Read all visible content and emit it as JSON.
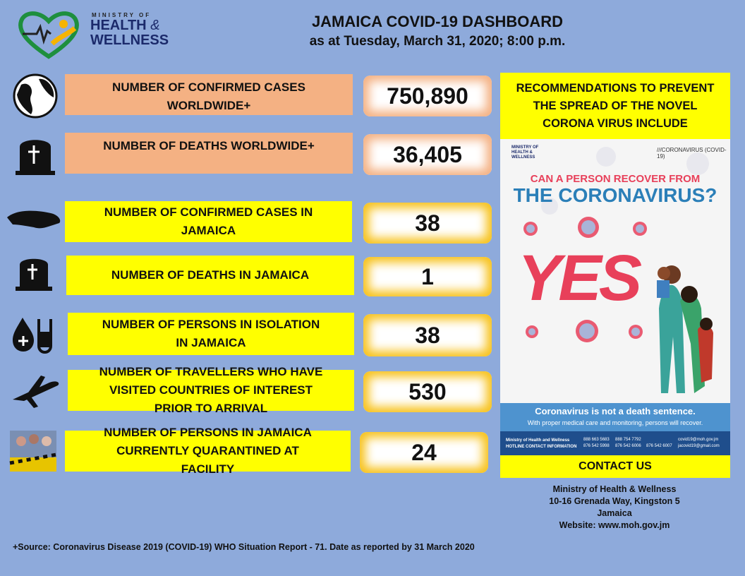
{
  "header": {
    "logo": [
      "MINISTRY OF",
      "HEALTH",
      "&",
      "WELLNESS"
    ],
    "title": "JAMAICA COVID-19 DASHBOARD",
    "subtitle": "as at Tuesday, March 31, 2020; 8:00 p.m."
  },
  "stats": [
    {
      "label": "NUMBER OF CONFIRMED CASES WORLDWIDE+",
      "value": "750,890"
    },
    {
      "label": "NUMBER OF DEATHS WORLDWIDE+",
      "value": "36,405"
    },
    {
      "label": "NUMBER OF CONFIRMED CASES IN JAMAICA",
      "value": "38"
    },
    {
      "label": "NUMBER OF DEATHS IN JAMAICA",
      "value": "1"
    },
    {
      "label": "NUMBER OF PERSONS IN ISOLATION IN JAMAICA",
      "value": "38"
    },
    {
      "label": "NUMBER OF TRAVELLERS WHO HAVE VISITED COUNTRIES OF INTEREST PRIOR TO ARRIVAL",
      "value": "530"
    },
    {
      "label": "NUMBER OF PERSONS IN JAMAICA CURRENTLY QUARANTINED AT FACILITY",
      "value": "24"
    }
  ],
  "recommendations": {
    "title": "RECOMMENDATIONS TO PREVENT THE SPREAD OF THE NOVEL CORONA VIRUS INCLUDE",
    "poster": {
      "logo": [
        "MINISTRY OF",
        "HEALTH &",
        "WELLNESS"
      ],
      "tag": "///CORONAVIRUS (COVID-19)",
      "question": "CAN A PERSON RECOVER FROM",
      "heading": "THE CORONAVIRUS?",
      "answer": "YES",
      "message": "Coronavirus is not a death sentence.",
      "submessage": "With proper medical care and monitoring, persons will recover.",
      "hotline": [
        "Ministry of Health and Wellness",
        "HOTLINE CONTACT INFORMATION"
      ],
      "phones": [
        "888 663 5683",
        "888 754 7792",
        "876 542 5998",
        "876 542 6006",
        "876 542 6007",
        "covid19@moh.gov.jm",
        "jacovid19@gmail.com"
      ]
    },
    "contact_title": "CONTACT US",
    "contact": [
      "Ministry of Health & Wellness",
      "10-16 Grenada Way, Kingston 5",
      "Jamaica",
      "Website: www.moh.gov.jm"
    ]
  },
  "footnote": "+Source: Coronavirus Disease 2019 (COVID-19) WHO Situation Report - 71. Date as reported by 31 March 2020"
}
